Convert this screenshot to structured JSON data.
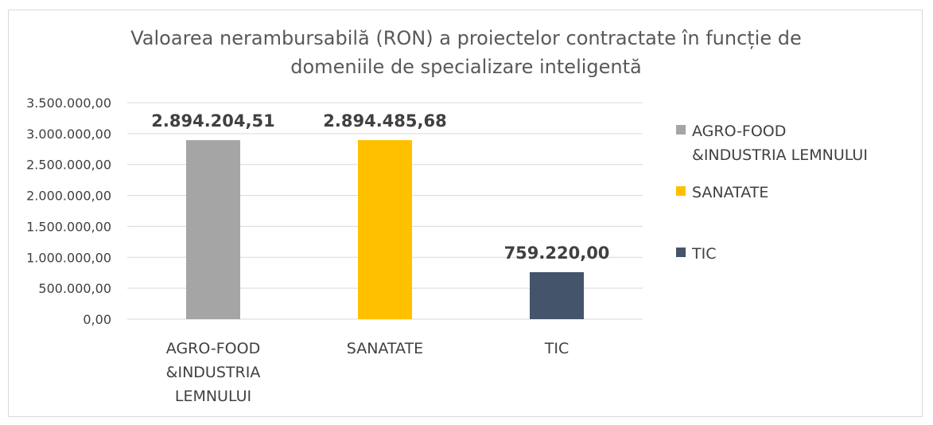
{
  "chart_data": {
    "type": "bar",
    "title_lines": [
      "Valoarea nerambursabilă (RON) a proiectelor contractate în funcție de",
      "domeniile de specializare inteligentă"
    ],
    "categories": [
      "AGRO-FOOD &INDUSTRIA LEMNULUI",
      "SANATATE",
      "TIC"
    ],
    "category_label_lines": [
      [
        "AGRO-FOOD",
        "&INDUSTRIA",
        "LEMNULUI"
      ],
      [
        "SANATATE"
      ],
      [
        "TIC"
      ]
    ],
    "values": [
      2894204.51,
      2894485.68,
      759220.0
    ],
    "data_labels": [
      "2.894.204,51",
      "2.894.485,68",
      "759.220,00"
    ],
    "colors": [
      "#a5a5a5",
      "#ffc000",
      "#44546a"
    ],
    "ylim": [
      0,
      3500000
    ],
    "y_ticks": [
      0,
      500000,
      1000000,
      1500000,
      2000000,
      2500000,
      3000000,
      3500000
    ],
    "y_tick_labels": [
      "0,00",
      "500.000,00",
      "1.000.000,00",
      "1.500.000,00",
      "2.000.000,00",
      "2.500.000,00",
      "3.000.000,00",
      "3.500.000,00"
    ],
    "grid": true,
    "legend": {
      "position": "right",
      "entries": [
        {
          "lines": [
            "AGRO-FOOD",
            "&INDUSTRIA LEMNULUI"
          ],
          "color": "#a5a5a5"
        },
        {
          "lines": [
            "SANATATE"
          ],
          "color": "#ffc000"
        },
        {
          "lines": [
            "TIC"
          ],
          "color": "#44546a"
        }
      ]
    }
  }
}
